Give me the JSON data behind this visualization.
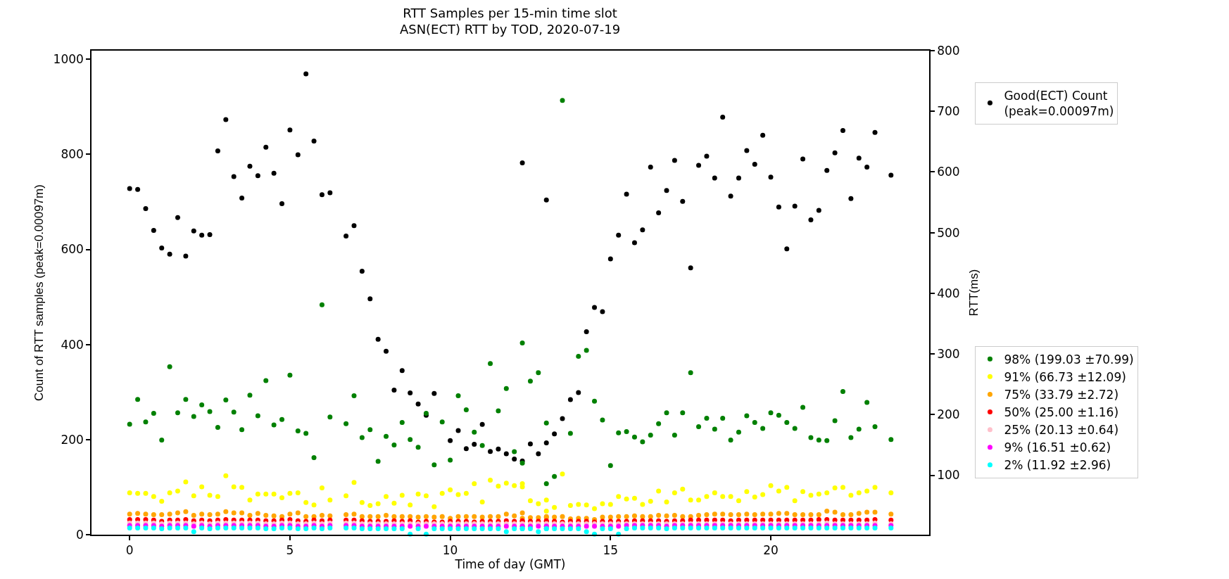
{
  "chart_data": {
    "type": "scatter",
    "title": "RTT Samples per 15-min time slot",
    "subtitle": "ASN(ECT) RTT by TOD, 2020-07-19",
    "xlabel": "Time of day (GMT)",
    "ylabel": "Count of RTT samples (peak=0.00097m)",
    "y2label": "RTT(ms)",
    "x": [
      0,
      0.25,
      0.5,
      0.75,
      1,
      1.25,
      1.5,
      1.75,
      2,
      2.25,
      2.5,
      2.75,
      3,
      3.25,
      3.5,
      3.75,
      4,
      4.25,
      4.5,
      4.75,
      5,
      5.25,
      5.5,
      5.75,
      6,
      6.25,
      6.75,
      7,
      7.25,
      7.5,
      7.75,
      8,
      8.25,
      8.5,
      8.75,
      9,
      9.25,
      9.5,
      9.75,
      10,
      10.25,
      10.5,
      10.75,
      11,
      11.25,
      11.5,
      11.75,
      12,
      12.25,
      12.25,
      12.5,
      12.75,
      13,
      13,
      13.25,
      13.5,
      13.75,
      14,
      14.25,
      14.5,
      14.75,
      15,
      15.25,
      15.5,
      15.75,
      16,
      16.25,
      16.5,
      16.75,
      17,
      17.25,
      17.5,
      17.75,
      18,
      18.25,
      18.5,
      18.75,
      19,
      19.25,
      19.5,
      19.75,
      20,
      20.25,
      20.5,
      20.75,
      21,
      21.25,
      21.5,
      21.75,
      22,
      22.25,
      22.5,
      22.75,
      23,
      23.25,
      23.75
    ],
    "series": [
      {
        "name": "Good(ECT) Count\n(peak=0.00097m)",
        "color": "#000000",
        "axis": "y",
        "values": [
          728,
          726,
          686,
          640,
          603,
          590,
          667,
          586,
          639,
          630,
          631,
          807,
          873,
          753,
          708,
          775,
          755,
          815,
          760,
          696,
          851,
          799,
          969,
          828,
          715,
          719,
          628,
          650,
          554,
          496,
          411,
          386,
          304,
          345,
          298,
          275,
          251,
          297,
          null,
          198,
          219,
          181,
          190,
          232,
          175,
          180,
          170,
          159,
          155,
          782,
          191,
          170,
          193,
          704,
          212,
          244,
          284,
          299,
          427,
          478,
          469,
          580,
          630,
          716,
          614,
          641,
          773,
          677,
          724,
          787,
          701,
          561,
          777,
          796,
          750,
          878,
          712,
          750,
          808,
          779,
          840,
          752,
          689,
          601,
          691,
          790,
          662,
          682,
          766,
          803,
          850,
          707,
          792,
          773,
          846,
          756
        ]
      },
      {
        "name": "98% (199.03 ±70.99)",
        "color": "#008000",
        "axis": "y2",
        "values": [
          184,
          225,
          188,
          202,
          158,
          279,
          203,
          225,
          197,
          216,
          205,
          179,
          224,
          204,
          175,
          232,
          198,
          256,
          183,
          192,
          265,
          173,
          169,
          129,
          381,
          196,
          185,
          231,
          162,
          175,
          123,
          164,
          150,
          187,
          159,
          146,
          202,
          117,
          188,
          125,
          231,
          208,
          171,
          149,
          284,
          206,
          243,
          139,
          120,
          318,
          255,
          269,
          186,
          86,
          98,
          718,
          169,
          296,
          306,
          222,
          191,
          116,
          170,
          172,
          163,
          155,
          166,
          185,
          203,
          166,
          203,
          269,
          180,
          194,
          176,
          194,
          158,
          171,
          198,
          187,
          177,
          203,
          199,
          187,
          177,
          212,
          162,
          158,
          157,
          190,
          238,
          162,
          176,
          220,
          180,
          159
        ]
      },
      {
        "name": "91% (66.73 ±12.09)",
        "color": "#ffff00",
        "axis": "y2",
        "values": [
          71,
          70,
          70,
          65,
          57,
          71,
          74,
          89,
          66,
          81,
          67,
          65,
          99,
          81,
          80,
          59,
          69,
          69,
          69,
          63,
          70,
          71,
          55,
          51,
          79,
          59,
          66,
          88,
          55,
          50,
          53,
          65,
          54,
          67,
          51,
          69,
          66,
          48,
          70,
          76,
          68,
          70,
          86,
          56,
          92,
          82,
          87,
          83,
          86,
          81,
          58,
          53,
          59,
          41,
          47,
          102,
          50,
          52,
          51,
          45,
          53,
          52,
          65,
          61,
          62,
          52,
          57,
          74,
          56,
          71,
          77,
          59,
          59,
          65,
          71,
          65,
          65,
          58,
          73,
          64,
          68,
          83,
          74,
          80,
          58,
          73,
          67,
          69,
          71,
          79,
          80,
          67,
          71,
          74,
          80,
          71
        ]
      },
      {
        "name": "75% (33.79 ±2.72)",
        "color": "#ffa500",
        "axis": "y2",
        "values": [
          36,
          37,
          36,
          35,
          35,
          36,
          38,
          40,
          34,
          36,
          35,
          36,
          40,
          38,
          38,
          34,
          37,
          34,
          33,
          32,
          36,
          38,
          32,
          32,
          34,
          33,
          35,
          36,
          32,
          32,
          32,
          34,
          32,
          32,
          32,
          31,
          32,
          31,
          32,
          29,
          32,
          32,
          32,
          31,
          32,
          32,
          36,
          33,
          38,
          29,
          30,
          30,
          32,
          30,
          31,
          32,
          28,
          29,
          29,
          27,
          31,
          31,
          32,
          32,
          33,
          32,
          32,
          34,
          33,
          34,
          32,
          32,
          34,
          35,
          36,
          36,
          35,
          35,
          36,
          35,
          36,
          36,
          37,
          37,
          35,
          35,
          35,
          35,
          41,
          39,
          35,
          35,
          37,
          39,
          39,
          36
        ]
      },
      {
        "name": "50% (25.00 ±1.16)",
        "color": "#ff0000",
        "axis": "y2",
        "values": [
          27,
          27,
          27,
          26,
          24,
          26,
          26,
          27,
          25,
          26,
          25,
          26,
          27,
          26,
          26,
          26,
          26,
          25,
          25,
          26,
          27,
          25,
          24,
          26,
          25,
          26,
          26,
          26,
          25,
          24,
          24,
          24,
          25,
          24,
          25,
          23,
          24,
          23,
          23,
          24,
          24,
          24,
          23,
          24,
          24,
          24,
          25,
          24,
          25,
          24,
          24,
          24,
          25,
          24,
          24,
          23,
          24,
          24,
          24,
          23,
          24,
          24,
          24,
          24,
          25,
          25,
          25,
          25,
          24,
          25,
          25,
          26,
          26,
          26,
          26,
          26,
          25,
          26,
          26,
          26,
          26,
          26,
          26,
          26,
          26,
          26,
          26,
          27,
          27,
          26,
          26,
          26,
          26,
          26,
          27,
          26
        ]
      },
      {
        "name": "25% (20.13 ±0.64)",
        "color": "#ffc0cb",
        "axis": "y2",
        "values": [
          21,
          21,
          21,
          21,
          20,
          21,
          21,
          21,
          20,
          21,
          20,
          21,
          21,
          21,
          21,
          21,
          21,
          20,
          20,
          21,
          21,
          20,
          20,
          21,
          20,
          21,
          21,
          21,
          20,
          20,
          20,
          20,
          20,
          20,
          20,
          20,
          20,
          20,
          20,
          20,
          20,
          20,
          20,
          20,
          20,
          20,
          20,
          20,
          20,
          20,
          20,
          20,
          20,
          20,
          20,
          20,
          20,
          20,
          20,
          20,
          20,
          20,
          20,
          20,
          20,
          20,
          20,
          20,
          20,
          20,
          20,
          20,
          20,
          20,
          20,
          20,
          20,
          20,
          20,
          20,
          20,
          20,
          20,
          20,
          20,
          20,
          20,
          20,
          21,
          20,
          20,
          20,
          20,
          20,
          21,
          20
        ]
      },
      {
        "name": "9% (16.51 ±0.62)",
        "color": "#ff00ff",
        "axis": "y2",
        "values": [
          17,
          17,
          17,
          17,
          16,
          17,
          17,
          17,
          16,
          17,
          16,
          17,
          17,
          17,
          17,
          17,
          17,
          16,
          16,
          17,
          17,
          16,
          16,
          17,
          16,
          17,
          17,
          17,
          16,
          16,
          16,
          16,
          16,
          16,
          16,
          16,
          16,
          16,
          16,
          16,
          16,
          16,
          16,
          16,
          16,
          16,
          16,
          16,
          16,
          16,
          16,
          16,
          16,
          16,
          16,
          16,
          16,
          16,
          16,
          16,
          16,
          16,
          16,
          17,
          17,
          17,
          17,
          17,
          16,
          17,
          17,
          17,
          17,
          17,
          17,
          17,
          17,
          17,
          17,
          17,
          17,
          17,
          17,
          17,
          17,
          17,
          17,
          17,
          17,
          17,
          17,
          17,
          17,
          17,
          17,
          17
        ]
      },
      {
        "name": "2% (11.92 ±2.96)",
        "color": "#00ffff",
        "axis": "y2",
        "values": [
          13,
          13,
          13,
          13,
          12,
          13,
          13,
          13,
          7,
          13,
          12,
          13,
          13,
          13,
          13,
          13,
          13,
          12,
          12,
          13,
          13,
          12,
          12,
          13,
          12,
          13,
          13,
          13,
          12,
          12,
          12,
          12,
          12,
          12,
          3,
          12,
          3,
          12,
          12,
          12,
          12,
          12,
          12,
          12,
          12,
          12,
          7,
          12,
          12,
          12,
          12,
          7,
          12,
          12,
          12,
          12,
          12,
          12,
          7,
          3,
          12,
          12,
          3,
          12,
          13,
          13,
          13,
          13,
          12,
          13,
          13,
          13,
          13,
          13,
          13,
          13,
          13,
          13,
          13,
          13,
          13,
          13,
          13,
          13,
          13,
          13,
          13,
          13,
          13,
          13,
          13,
          13,
          13,
          13,
          13,
          13
        ]
      }
    ],
    "xlim": [
      -1.19,
      24.94
    ],
    "xticks": [
      0,
      5,
      10,
      15,
      20
    ],
    "ylim": [
      0,
      1018
    ],
    "yticks": [
      0,
      200,
      400,
      600,
      800,
      1000
    ],
    "y2lim": [
      2,
      800
    ],
    "y2ticks": [
      100,
      200,
      300,
      400,
      500,
      600,
      700,
      800
    ],
    "marker": "circle",
    "grid": false,
    "legend": "right"
  }
}
